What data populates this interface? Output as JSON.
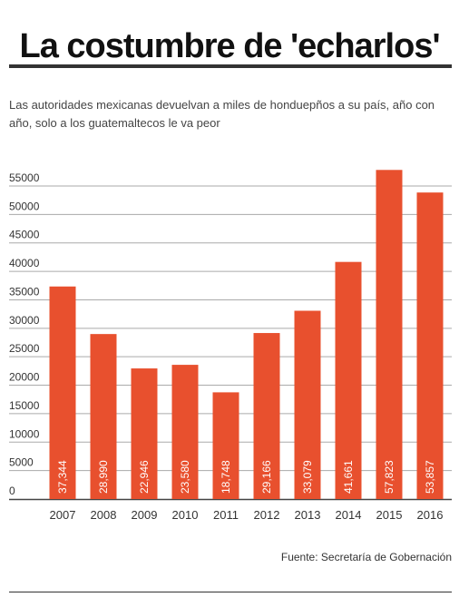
{
  "header": {
    "title": "La costumbre de 'echarlos'",
    "subtitle": "Las autoridades mexicanas devuelvan a miles de hondueрños a su país, año con año, solo a los guatemaltecos le va peor"
  },
  "footer": {
    "source": "Fuente: Secretaría de Gobernación"
  },
  "colors": {
    "bar": "#e8502e",
    "grid": "#aaaaaa",
    "axis": "#444444"
  },
  "chart_data": {
    "type": "bar",
    "categories": [
      "2007",
      "2008",
      "2009",
      "2010",
      "2011",
      "2012",
      "2013",
      "2014",
      "2015",
      "2016"
    ],
    "values": [
      37344,
      28990,
      22946,
      23580,
      18748,
      29166,
      33079,
      41661,
      57823,
      53857
    ],
    "value_labels": [
      "37,344",
      "28,990",
      "22,946",
      "23,580",
      "18,748",
      "29,166",
      "33,079",
      "41,661",
      "57,823",
      "53,857"
    ],
    "yticks": [
      0,
      5000,
      10000,
      15000,
      20000,
      25000,
      30000,
      35000,
      40000,
      45000,
      50000,
      55000
    ],
    "ylim": [
      0,
      55000
    ],
    "grid": true,
    "title": "",
    "xlabel": "",
    "ylabel": ""
  }
}
